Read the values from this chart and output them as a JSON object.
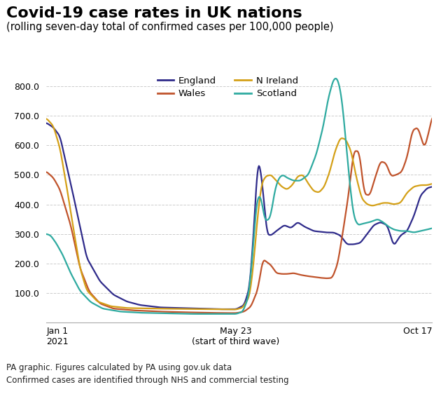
{
  "title": "Covid-19 case rates in UK nations",
  "subtitle": "(rolling seven-day total of confirmed cases per 100,000 people)",
  "footnote1": "PA graphic. Figures calculated by PA using gov.uk data",
  "footnote2": "Confirmed cases are identified through NHS and commercial testing",
  "xlabel_left": "Jan 1\n2021",
  "xlabel_mid": "May 23\n(start of third wave)",
  "xlabel_right": "Oct 17",
  "ylim": [
    0,
    860
  ],
  "yticks": [
    100.0,
    200.0,
    300.0,
    400.0,
    500.0,
    600.0,
    700.0,
    800.0
  ],
  "colors": {
    "England": "#2e2a8a",
    "Wales": "#c0532b",
    "N Ireland": "#d4a017",
    "Scotland": "#2eaaa0"
  },
  "background_color": "#ffffff",
  "grid_color": "#cccccc"
}
